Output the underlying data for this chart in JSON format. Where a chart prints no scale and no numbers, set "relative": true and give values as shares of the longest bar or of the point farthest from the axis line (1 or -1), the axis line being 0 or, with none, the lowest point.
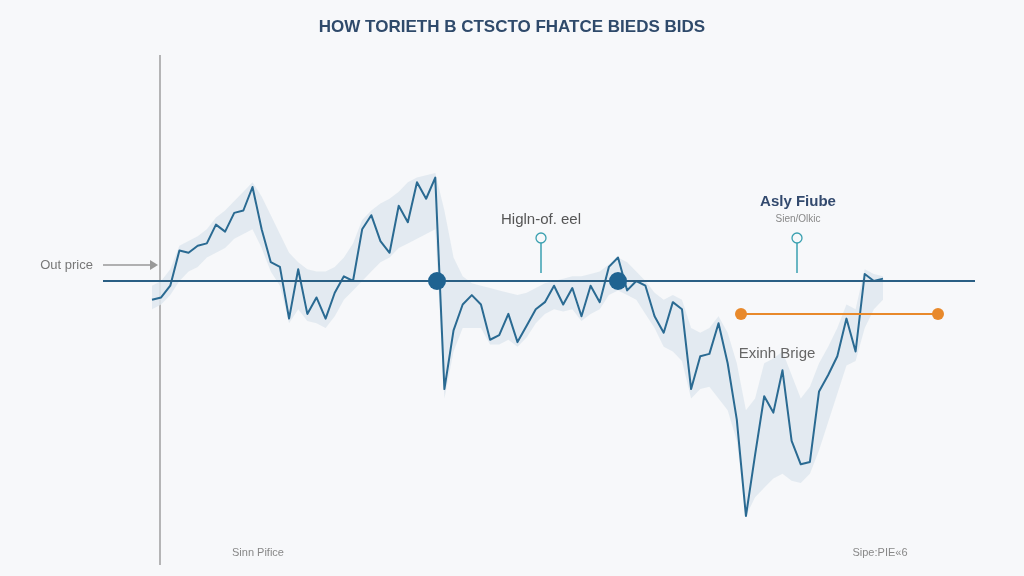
{
  "chart_data": {
    "type": "line",
    "title": "HOW TORIETH B CTSCTO FHATCE BIEDS BIDS",
    "relative": true,
    "categories": [
      null,
      null,
      null,
      null,
      null,
      null,
      null,
      null,
      null,
      null,
      null,
      null,
      null,
      null,
      null,
      null,
      null,
      null,
      null,
      null,
      null,
      null,
      null,
      null,
      null,
      null,
      null,
      null,
      null,
      null,
      null,
      null,
      null,
      null,
      null,
      null,
      null,
      null,
      null,
      null,
      null,
      null,
      null,
      null,
      null,
      null,
      null,
      null,
      null,
      null,
      null,
      null,
      null,
      null,
      null,
      null,
      null,
      null,
      null,
      null,
      null,
      null,
      null,
      null,
      null,
      null,
      null,
      null,
      null,
      null,
      null,
      null,
      null,
      null,
      null,
      null,
      null,
      null,
      null,
      null,
      null
    ],
    "series": [
      {
        "color": "#2a6a92",
        "values": [
          -0.08,
          -0.07,
          -0.02,
          0.13,
          0.12,
          0.15,
          0.16,
          0.24,
          0.21,
          0.29,
          0.3,
          0.4,
          0.22,
          0.08,
          0.06,
          -0.16,
          0.05,
          -0.14,
          -0.07,
          -0.16,
          -0.05,
          0.02,
          0.0,
          0.22,
          0.28,
          0.17,
          0.12,
          0.32,
          0.25,
          0.42,
          0.35,
          0.44,
          -0.46,
          -0.21,
          -0.1,
          -0.06,
          -0.1,
          -0.25,
          -0.23,
          -0.14,
          -0.26,
          -0.19,
          -0.12,
          -0.09,
          -0.02,
          -0.1,
          -0.03,
          -0.15,
          -0.02,
          -0.09,
          0.06,
          0.1,
          -0.04,
          0.0,
          -0.02,
          -0.15,
          -0.22,
          -0.09,
          -0.12,
          -0.46,
          -0.32,
          -0.31,
          -0.18,
          -0.35,
          -0.59,
          -1.0,
          -0.74,
          -0.49,
          -0.56,
          -0.38,
          -0.68,
          -0.78,
          -0.77,
          -0.47,
          -0.4,
          -0.32,
          -0.16,
          -0.3,
          0.03,
          0.0,
          0.01
        ],
        "upper": [
          -0.02,
          0.0,
          0.05,
          0.15,
          0.17,
          0.19,
          0.22,
          0.27,
          0.3,
          0.34,
          0.38,
          0.42,
          0.36,
          0.28,
          0.2,
          0.12,
          0.08,
          0.05,
          0.04,
          0.04,
          0.06,
          0.1,
          0.16,
          0.26,
          0.3,
          0.33,
          0.35,
          0.38,
          0.42,
          0.44,
          0.45,
          0.46,
          0.3,
          0.1,
          0.02,
          -0.01,
          -0.02,
          -0.03,
          -0.04,
          -0.05,
          -0.06,
          -0.05,
          -0.03,
          -0.01,
          0.0,
          0.01,
          0.02,
          0.02,
          0.03,
          0.04,
          0.07,
          0.1,
          0.08,
          0.04,
          0.0,
          -0.05,
          -0.08,
          -0.06,
          -0.08,
          -0.2,
          -0.22,
          -0.2,
          -0.15,
          -0.22,
          -0.35,
          -0.55,
          -0.5,
          -0.35,
          -0.33,
          -0.3,
          -0.4,
          -0.5,
          -0.45,
          -0.35,
          -0.28,
          -0.2,
          -0.1,
          -0.12,
          0.05,
          0.03,
          0.02
        ],
        "lower": [
          -0.12,
          -0.1,
          -0.06,
          0.0,
          0.04,
          0.06,
          0.1,
          0.12,
          0.14,
          0.18,
          0.2,
          0.22,
          0.14,
          0.04,
          -0.02,
          -0.18,
          -0.12,
          -0.17,
          -0.18,
          -0.2,
          -0.15,
          -0.08,
          -0.04,
          0.0,
          0.04,
          0.08,
          0.1,
          0.14,
          0.16,
          0.18,
          0.2,
          0.22,
          -0.5,
          -0.3,
          -0.2,
          -0.2,
          -0.2,
          -0.27,
          -0.27,
          -0.25,
          -0.28,
          -0.24,
          -0.18,
          -0.14,
          -0.12,
          -0.13,
          -0.12,
          -0.17,
          -0.14,
          -0.12,
          -0.06,
          -0.04,
          -0.06,
          -0.08,
          -0.14,
          -0.2,
          -0.28,
          -0.3,
          -0.34,
          -0.5,
          -0.46,
          -0.45,
          -0.5,
          -0.55,
          -0.68,
          -1.0,
          -0.92,
          -0.88,
          -0.84,
          -0.82,
          -0.85,
          -0.86,
          -0.82,
          -0.72,
          -0.6,
          -0.48,
          -0.36,
          -0.34,
          -0.2,
          -0.12,
          -0.08
        ]
      }
    ],
    "ref_lines": [
      {
        "axis": "y",
        "value": 0,
        "color": "#2a5f84"
      },
      {
        "axis": "y",
        "value": -0.14,
        "label": "Exinh Brige",
        "color": "#e8892b"
      }
    ],
    "annotations": [
      "Out price",
      "Higln-of. eel",
      "Asly Fiube",
      "Sien/Olkic",
      "Sinn Pifice",
      "Sipe:PIE«6"
    ]
  }
}
